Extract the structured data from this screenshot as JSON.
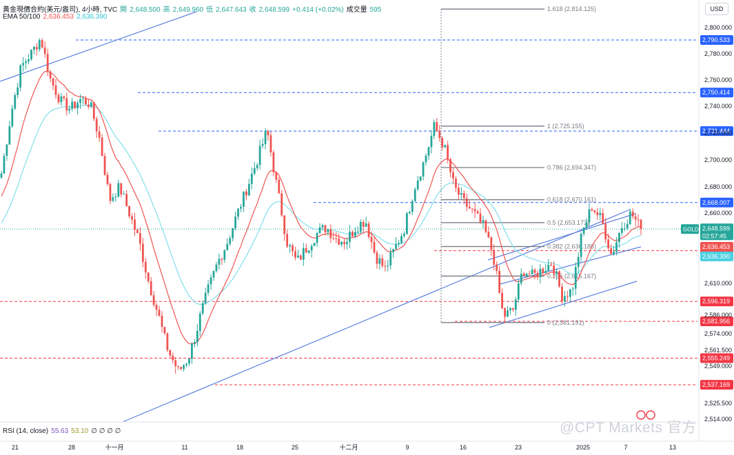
{
  "header": {
    "symbol_line": "黃金現價合約(美元/盎司), 4小時, TVC",
    "open_label": "開",
    "open_value": "2,648.500",
    "high_label": "高",
    "high_value": "2,649.960",
    "low_label": "低",
    "low_value": "2,647.643",
    "close_label": "收",
    "close_value": "2,648.599",
    "change": "+0.414 (+0.02%)",
    "volume_label": "成交量",
    "volume_value": "595",
    "ema_label": "EMA 50/100",
    "ema50": "2,636.453",
    "ema100": "2,636.390"
  },
  "currency_button": "USD",
  "rsi": {
    "label": "RSI (14, close)",
    "v1": "55.63",
    "v2": "53.10",
    "rest": "∅ ∅ ∅ ∅"
  },
  "watermark": "@CPT Markets 官方",
  "colors": {
    "up": "#26a69a",
    "down": "#ef5350",
    "ema50": "#ef5350",
    "ema100": "#80deea",
    "blue_level": "#2962ff",
    "red_level": "#f23645",
    "channel": "#5b7fe0",
    "fib": "#787b86"
  },
  "chart_data": {
    "type": "candlestick",
    "symbol": "GOLD",
    "timeframe": "4小時",
    "last_price": "2,648.599",
    "countdown": "02:57:45",
    "y_ticks": [
      "2,800.000",
      "2,780.000",
      "2,760.000",
      "2,740.000",
      "2,720.000",
      "2,700.000",
      "2,680.000",
      "2,660.000",
      "2,610.000",
      "2,586.000",
      "2,574.000",
      "2,561.500",
      "2,549.000",
      "2,525.500",
      "2,514.000"
    ],
    "ylim": [
      2514,
      2820
    ],
    "x_ticks": [
      "21",
      "28",
      "十一月",
      "11",
      "18",
      "25",
      "十二月",
      "9",
      "16",
      "23",
      "2025",
      "7",
      "13"
    ],
    "horizontal_levels": [
      {
        "price": 2790.533,
        "label": "2,790.533",
        "color": "blue"
      },
      {
        "price": 2750.414,
        "label": "2,750.414",
        "color": "blue"
      },
      {
        "price": 2721.444,
        "label": "2,721.444",
        "color": "blue"
      },
      {
        "price": 2668.007,
        "label": "2,668.007",
        "color": "blue"
      },
      {
        "price": 2633.204,
        "label": "2,633.204",
        "color": "red"
      },
      {
        "price": 2596.319,
        "label": "2,596.319",
        "color": "red"
      },
      {
        "price": 2581.956,
        "label": "2,581.956",
        "color": "red"
      },
      {
        "price": 2555.249,
        "label": "2,555.249",
        "color": "red"
      },
      {
        "price": 2537.169,
        "label": "2,537.169",
        "color": "red"
      }
    ],
    "price_tags": [
      {
        "label": "GOLD",
        "value": "2,648.599",
        "sub": "02:57:45",
        "price": 2648.599,
        "color": "#26a69a"
      },
      {
        "value": "2,636.453",
        "price": 2636.453,
        "color": "#ef5350"
      },
      {
        "value": "2,636.390",
        "price": 2636.39,
        "color": "#4dd0e1"
      }
    ],
    "fib_levels": [
      {
        "ratio": "1.618",
        "price": "2,814.125"
      },
      {
        "ratio": "1",
        "price": "2,725.155"
      },
      {
        "ratio": "0.786",
        "price": "2,694.347"
      },
      {
        "ratio": "0.618",
        "price": "2,670.161"
      },
      {
        "ratio": "0.5",
        "price": "2,653.173"
      },
      {
        "ratio": "0.382",
        "price": "2,636.186"
      },
      {
        "ratio": "0.236",
        "price": "2,615.167"
      },
      {
        "ratio": "0",
        "price": "2,581.191"
      }
    ],
    "close_path": [
      2690,
      2735,
      2770,
      2780,
      2792,
      2760,
      2744,
      2738,
      2745,
      2742,
      2715,
      2670,
      2680,
      2660,
      2640,
      2610,
      2585,
      2560,
      2545,
      2555,
      2580,
      2605,
      2625,
      2640,
      2660,
      2680,
      2700,
      2722,
      2680,
      2640,
      2625,
      2635,
      2645,
      2650,
      2642,
      2640,
      2650,
      2655,
      2630,
      2620,
      2635,
      2650,
      2680,
      2700,
      2725,
      2710,
      2680,
      2668,
      2660,
      2650,
      2630,
      2585,
      2590,
      2620,
      2615,
      2620,
      2625,
      2600,
      2605,
      2645,
      2665,
      2655,
      2630,
      2650,
      2660,
      2648.6
    ]
  }
}
